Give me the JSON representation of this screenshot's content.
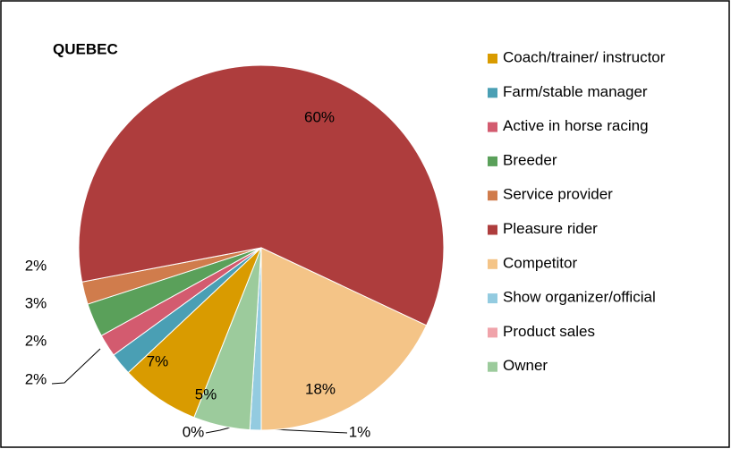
{
  "chart_data": {
    "type": "pie",
    "title": "QUEBEC",
    "categories": [
      "Coach/trainer/ instructor",
      "Farm/stable manager",
      "Active in horse racing",
      "Breeder",
      "Service provider",
      "Pleasure rider",
      "Competitor",
      "Show organizer/official",
      "Product sales",
      "Owner"
    ],
    "values": [
      7,
      2,
      2,
      3,
      2,
      60,
      18,
      1,
      0,
      5
    ],
    "value_labels": [
      "7%",
      "2%",
      "2%",
      "3%",
      "2%",
      "60%",
      "18%",
      "1%",
      "0%",
      "5%"
    ],
    "colors": [
      "#d99b00",
      "#4a9fb4",
      "#d35b6f",
      "#5aa05a",
      "#d07c4c",
      "#ae3d3d",
      "#f4c487",
      "#93cbe0",
      "#f0a3aa",
      "#9ccb9c"
    ],
    "legend": "right"
  }
}
